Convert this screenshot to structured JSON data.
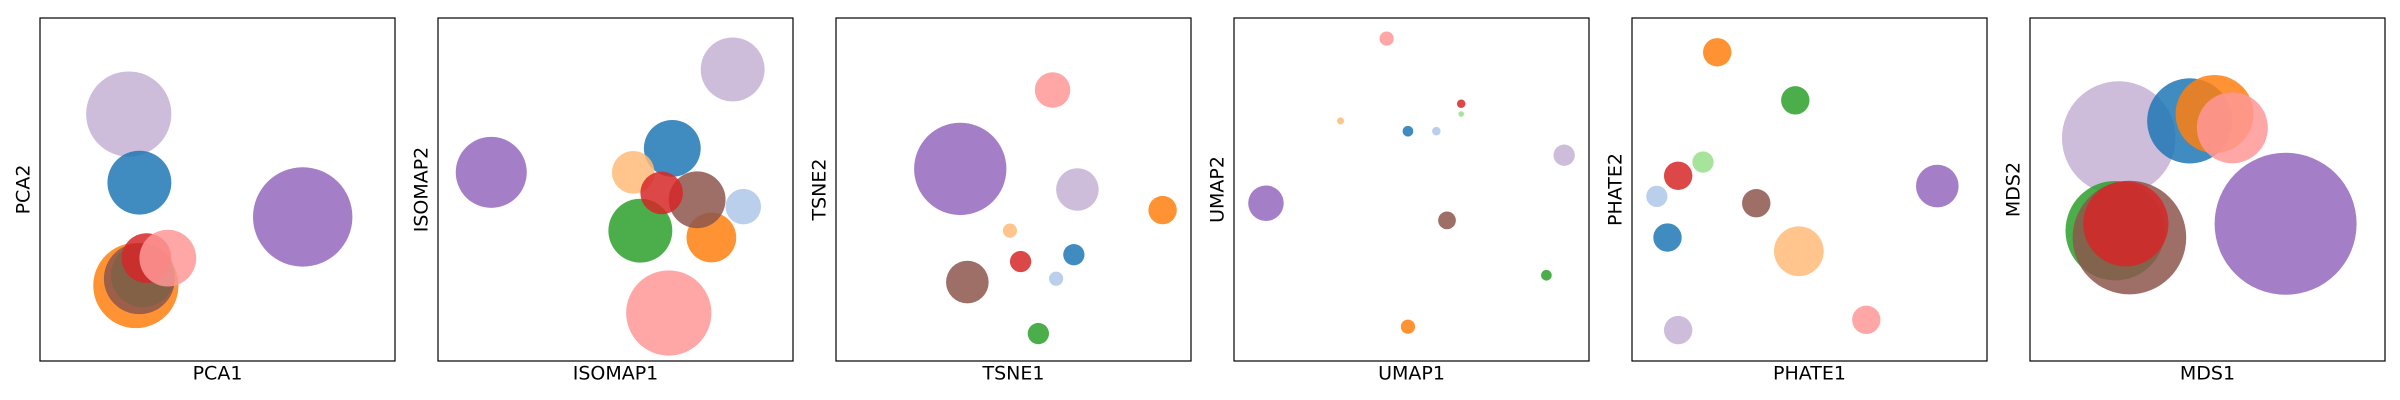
{
  "chart_data": [
    {
      "type": "scatter",
      "xlabel": "PCA1",
      "ylabel": "PCA2",
      "xlim": [
        0,
        100
      ],
      "ylim": [
        0,
        100
      ],
      "series": [
        {
          "color": "#c5b0d5",
          "x": [
            25
          ],
          "values": [
            72
          ],
          "sizes": [
            12
          ]
        },
        {
          "color": "#1f77b4",
          "x": [
            28
          ],
          "values": [
            52
          ],
          "sizes": [
            9
          ]
        },
        {
          "color": "#ff7f0e",
          "x": [
            27
          ],
          "values": [
            22
          ],
          "sizes": [
            12
          ]
        },
        {
          "color": "#2ca02c",
          "x": [
            29
          ],
          "values": [
            25
          ],
          "sizes": [
            9
          ]
        },
        {
          "color": "#8c564b",
          "x": [
            28
          ],
          "values": [
            24
          ],
          "sizes": [
            10
          ]
        },
        {
          "color": "#d62728",
          "x": [
            30
          ],
          "values": [
            30
          ],
          "sizes": [
            7
          ]
        },
        {
          "color": "#ff9896",
          "x": [
            36
          ],
          "values": [
            30
          ],
          "sizes": [
            8
          ]
        },
        {
          "color": "#9467bd",
          "x": [
            74
          ],
          "values": [
            42
          ],
          "sizes": [
            14
          ]
        }
      ]
    },
    {
      "type": "scatter",
      "xlabel": "ISOMAP1",
      "ylabel": "ISOMAP2",
      "xlim": [
        0,
        100
      ],
      "ylim": [
        0,
        100
      ],
      "series": [
        {
          "color": "#9467bd",
          "x": [
            15
          ],
          "values": [
            55
          ],
          "sizes": [
            10
          ]
        },
        {
          "color": "#c5b0d5",
          "x": [
            83
          ],
          "values": [
            85
          ],
          "sizes": [
            9
          ]
        },
        {
          "color": "#1f77b4",
          "x": [
            66
          ],
          "values": [
            62
          ],
          "sizes": [
            8
          ]
        },
        {
          "color": "#ffbb78",
          "x": [
            55
          ],
          "values": [
            55
          ],
          "sizes": [
            6
          ]
        },
        {
          "color": "#aec7e8",
          "x": [
            86
          ],
          "values": [
            45
          ],
          "sizes": [
            5
          ]
        },
        {
          "color": "#2ca02c",
          "x": [
            57
          ],
          "values": [
            38
          ],
          "sizes": [
            9
          ]
        },
        {
          "color": "#ff7f0e",
          "x": [
            77
          ],
          "values": [
            36
          ],
          "sizes": [
            7
          ]
        },
        {
          "color": "#8c564b",
          "x": [
            73
          ],
          "values": [
            47
          ],
          "sizes": [
            8
          ]
        },
        {
          "color": "#d62728",
          "x": [
            63
          ],
          "values": [
            49
          ],
          "sizes": [
            6
          ]
        },
        {
          "color": "#ff9896",
          "x": [
            65
          ],
          "values": [
            14
          ],
          "sizes": [
            12
          ]
        }
      ]
    },
    {
      "type": "scatter",
      "xlabel": "TSNE1",
      "ylabel": "TSNE2",
      "xlim": [
        0,
        100
      ],
      "ylim": [
        0,
        100
      ],
      "series": [
        {
          "color": "#9467bd",
          "x": [
            35
          ],
          "values": [
            56
          ],
          "sizes": [
            13
          ]
        },
        {
          "color": "#ff9896",
          "x": [
            61
          ],
          "values": [
            79
          ],
          "sizes": [
            5
          ]
        },
        {
          "color": "#c5b0d5",
          "x": [
            68
          ],
          "values": [
            50
          ],
          "sizes": [
            6
          ]
        },
        {
          "color": "#ff7f0e",
          "x": [
            92
          ],
          "values": [
            44
          ],
          "sizes": [
            4
          ]
        },
        {
          "color": "#8c564b",
          "x": [
            37
          ],
          "values": [
            23
          ],
          "sizes": [
            6
          ]
        },
        {
          "color": "#d62728",
          "x": [
            52
          ],
          "values": [
            29
          ],
          "sizes": [
            3
          ]
        },
        {
          "color": "#aec7e8",
          "x": [
            62
          ],
          "values": [
            24
          ],
          "sizes": [
            2
          ]
        },
        {
          "color": "#1f77b4",
          "x": [
            67
          ],
          "values": [
            31
          ],
          "sizes": [
            3
          ]
        },
        {
          "color": "#ffbb78",
          "x": [
            49
          ],
          "values": [
            38
          ],
          "sizes": [
            2
          ]
        },
        {
          "color": "#2ca02c",
          "x": [
            57
          ],
          "values": [
            8
          ],
          "sizes": [
            3
          ]
        }
      ]
    },
    {
      "type": "scatter",
      "xlabel": "UMAP1",
      "ylabel": "UMAP2",
      "xlim": [
        0,
        100
      ],
      "ylim": [
        0,
        100
      ],
      "series": [
        {
          "color": "#ff9896",
          "x": [
            43
          ],
          "values": [
            94
          ],
          "sizes": [
            2
          ]
        },
        {
          "color": "#c5b0d5",
          "x": [
            93
          ],
          "values": [
            60
          ],
          "sizes": [
            3
          ]
        },
        {
          "color": "#9467bd",
          "x": [
            9
          ],
          "values": [
            46
          ],
          "sizes": [
            5
          ]
        },
        {
          "color": "#ff7f0e",
          "x": [
            49
          ],
          "values": [
            10
          ],
          "sizes": [
            2
          ]
        },
        {
          "color": "#8c564b",
          "x": [
            60
          ],
          "values": [
            41
          ],
          "sizes": [
            2.5
          ]
        },
        {
          "color": "#2ca02c",
          "x": [
            88
          ],
          "values": [
            25
          ],
          "sizes": [
            1.5
          ]
        },
        {
          "color": "#1f77b4",
          "x": [
            49
          ],
          "values": [
            67
          ],
          "sizes": [
            1.5
          ]
        },
        {
          "color": "#aec7e8",
          "x": [
            57
          ],
          "values": [
            67
          ],
          "sizes": [
            1.2
          ]
        },
        {
          "color": "#d62728",
          "x": [
            64
          ],
          "values": [
            75
          ],
          "sizes": [
            1.2
          ]
        },
        {
          "color": "#ffbb78",
          "x": [
            30
          ],
          "values": [
            70
          ],
          "sizes": [
            1
          ]
        },
        {
          "color": "#98df8a",
          "x": [
            64
          ],
          "values": [
            72
          ],
          "sizes": [
            0.8
          ]
        }
      ]
    },
    {
      "type": "scatter",
      "xlabel": "PHATE1",
      "ylabel": "PHATE2",
      "xlim": [
        0,
        100
      ],
      "ylim": [
        0,
        100
      ],
      "series": [
        {
          "color": "#ff7f0e",
          "x": [
            24
          ],
          "values": [
            90
          ],
          "sizes": [
            4
          ]
        },
        {
          "color": "#2ca02c",
          "x": [
            46
          ],
          "values": [
            76
          ],
          "sizes": [
            4
          ]
        },
        {
          "color": "#9467bd",
          "x": [
            86
          ],
          "values": [
            51
          ],
          "sizes": [
            6
          ]
        },
        {
          "color": "#98df8a",
          "x": [
            20
          ],
          "values": [
            58
          ],
          "sizes": [
            3
          ]
        },
        {
          "color": "#d62728",
          "x": [
            13
          ],
          "values": [
            54
          ],
          "sizes": [
            4
          ]
        },
        {
          "color": "#aec7e8",
          "x": [
            7
          ],
          "values": [
            48
          ],
          "sizes": [
            3
          ]
        },
        {
          "color": "#1f77b4",
          "x": [
            10
          ],
          "values": [
            36
          ],
          "sizes": [
            4
          ]
        },
        {
          "color": "#8c564b",
          "x": [
            35
          ],
          "values": [
            46
          ],
          "sizes": [
            4
          ]
        },
        {
          "color": "#ffbb78",
          "x": [
            47
          ],
          "values": [
            32
          ],
          "sizes": [
            7
          ]
        },
        {
          "color": "#ff9896",
          "x": [
            66
          ],
          "values": [
            12
          ],
          "sizes": [
            4
          ]
        },
        {
          "color": "#c5b0d5",
          "x": [
            13
          ],
          "values": [
            9
          ],
          "sizes": [
            4
          ]
        }
      ]
    },
    {
      "type": "scatter",
      "xlabel": "MDS1",
      "ylabel": "MDS2",
      "xlim": [
        0,
        100
      ],
      "ylim": [
        0,
        100
      ],
      "series": [
        {
          "color": "#c5b0d5",
          "x": [
            25
          ],
          "values": [
            65
          ],
          "sizes": [
            16
          ]
        },
        {
          "color": "#1f77b4",
          "x": [
            45
          ],
          "values": [
            70
          ],
          "sizes": [
            12
          ]
        },
        {
          "color": "#ff7f0e",
          "x": [
            52
          ],
          "values": [
            72
          ],
          "sizes": [
            11
          ]
        },
        {
          "color": "#ff9896",
          "x": [
            57
          ],
          "values": [
            68
          ],
          "sizes": [
            10
          ]
        },
        {
          "color": "#2ca02c",
          "x": [
            24
          ],
          "values": [
            38
          ],
          "sizes": [
            14
          ]
        },
        {
          "color": "#8c564b",
          "x": [
            28
          ],
          "values": [
            36
          ],
          "sizes": [
            16
          ]
        },
        {
          "color": "#d62728",
          "x": [
            27
          ],
          "values": [
            40
          ],
          "sizes": [
            12
          ]
        },
        {
          "color": "#9467bd",
          "x": [
            72
          ],
          "values": [
            40
          ],
          "sizes": [
            20
          ]
        }
      ]
    }
  ]
}
